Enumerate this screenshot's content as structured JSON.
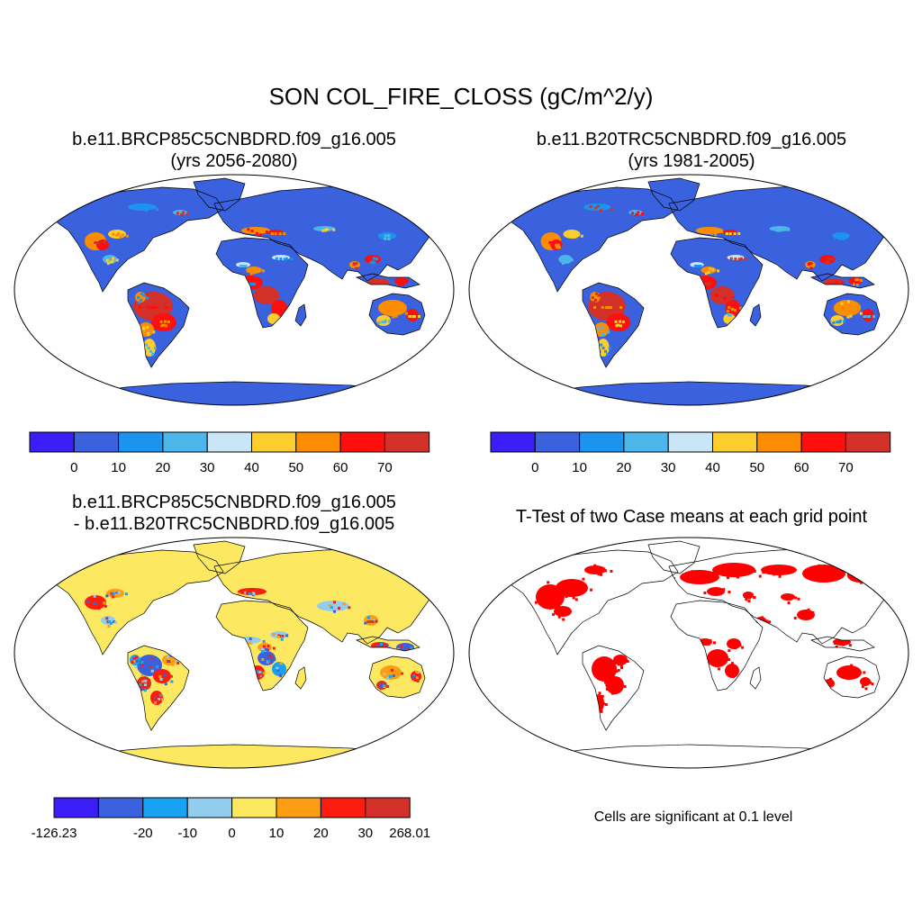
{
  "main_title": "SON COL_FIRE_CLOSS (gC/m^2/y)",
  "panels": {
    "top_left": {
      "title_line1": "b.e11.BRCP85C5CNBDRD.f09_g16.005",
      "title_line2": "(yrs 2056-2080)"
    },
    "top_right": {
      "title_line1": "b.e11.B20TRC5CNBDRD.f09_g16.005",
      "title_line2": "(yrs 1981-2005)"
    },
    "bottom_left": {
      "title_line1": "b.e11.BRCP85C5CNBDRD.f09_g16.005",
      "title_line2": "- b.e11.B20TRC5CNBDRD.f09_g16.005"
    },
    "bottom_right": {
      "title_line1": "T-Test of two Case means at each grid point"
    }
  },
  "colorbar_abs": {
    "colors": [
      "#3b1ef5",
      "#3a62de",
      "#1b94f0",
      "#4cb6ea",
      "#c8e6f7",
      "#fccd2d",
      "#fc8c00",
      "#fd0f0d",
      "#d3302a"
    ],
    "labels": [
      "0",
      "10",
      "20",
      "30",
      "40",
      "50",
      "60",
      "70"
    ]
  },
  "colorbar_diff": {
    "colors": [
      "#3b1ef5",
      "#3a62de",
      "#18a2f2",
      "#93cdee",
      "#fde961",
      "#fc9d14",
      "#fc1d0e",
      "#d3302a"
    ],
    "labels": [
      "-126.23",
      "-20",
      "-10",
      "0",
      "10",
      "20",
      "30",
      "268.01"
    ]
  },
  "significance_note": "Cells are significant at 0.1 level",
  "map_colors": {
    "ocean": "#ffffff",
    "abs_land_base": "#3a62de",
    "diff_land_base": "#fde961",
    "sig_fill": "#ff0000"
  }
}
